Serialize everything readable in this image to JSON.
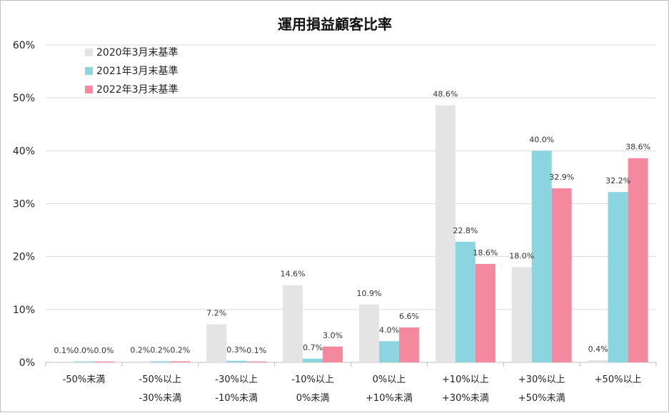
{
  "chart_data": {
    "type": "bar",
    "title": "運用損益顧客比率",
    "xlabel": "",
    "ylabel": "",
    "ylim": [
      0,
      60
    ],
    "ytick_labels": [
      "0%",
      "10%",
      "20%",
      "30%",
      "40%",
      "50%",
      "60%"
    ],
    "grid": true,
    "legend_position": "top-left",
    "categories": [
      [
        "-50%未満"
      ],
      [
        "-50%以上",
        "-30%未満"
      ],
      [
        "-30%以上",
        "-10%未満"
      ],
      [
        "-10%以上",
        "0%未満"
      ],
      [
        "0%以上",
        "+10%未満"
      ],
      [
        "+10%以上",
        "+30%未満"
      ],
      [
        "+30%以上",
        "+50%未満"
      ],
      [
        "+50%以上"
      ]
    ],
    "series": [
      {
        "name": "2020年3月末基準",
        "color": "#e4e4e4",
        "values": [
          0.1,
          0.2,
          7.2,
          14.6,
          10.9,
          48.6,
          18.0,
          0.4
        ],
        "labels": [
          "0.1%",
          "0.2%",
          "7.2%",
          "14.6%",
          "10.9%",
          "48.6%",
          "18.0%",
          "0.4%"
        ]
      },
      {
        "name": "2021年3月末基準",
        "color": "#8bd5e1",
        "values": [
          0.0,
          0.2,
          0.3,
          0.7,
          4.0,
          22.8,
          40.0,
          32.2
        ],
        "labels": [
          "0.0%",
          "0.2%",
          "0.3%",
          "0.7%",
          "4.0%",
          "22.8%",
          "40.0%",
          "32.2%"
        ]
      },
      {
        "name": "2022年3月末基準",
        "color": "#f4889e",
        "values": [
          0.0,
          0.2,
          0.1,
          3.0,
          6.6,
          18.6,
          32.9,
          38.6
        ],
        "labels": [
          "0.0%",
          "0.2%",
          "0.1%",
          "3.0%",
          "6.6%",
          "18.6%",
          "32.9%",
          "38.6%"
        ]
      }
    ]
  }
}
